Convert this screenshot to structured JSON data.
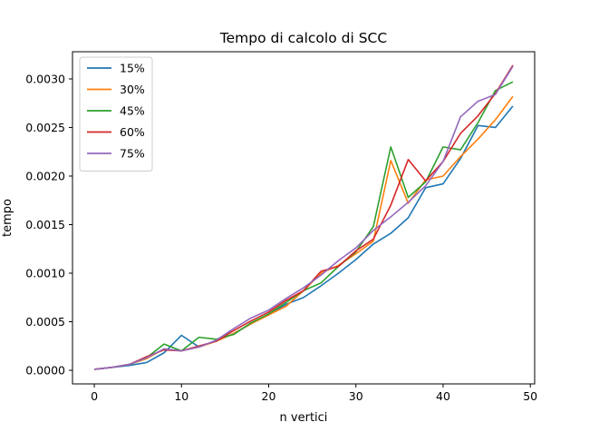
{
  "chart_data": {
    "type": "line",
    "title": "Tempo di calcolo di SCC",
    "xlabel": "n vertici",
    "ylabel": "tempo",
    "xlim": [
      -2.5,
      50.5
    ],
    "ylim": [
      -0.00014,
      0.00328
    ],
    "xticks": [
      0,
      10,
      20,
      30,
      40,
      50
    ],
    "xtick_labels": [
      "0",
      "10",
      "20",
      "30",
      "40",
      "50"
    ],
    "yticks": [
      0.0,
      0.0005,
      0.001,
      0.0015,
      0.002,
      0.0025,
      0.003
    ],
    "ytick_labels": [
      "0.0000",
      "0.0005",
      "0.0010",
      "0.0015",
      "0.0020",
      "0.0025",
      "0.0030"
    ],
    "grid": false,
    "legend_position": "top-left",
    "x": [
      0,
      2,
      4,
      6,
      8,
      10,
      12,
      14,
      16,
      18,
      20,
      22,
      24,
      26,
      28,
      30,
      32,
      34,
      36,
      38,
      40,
      42,
      44,
      46,
      48
    ],
    "series": [
      {
        "name": "15%",
        "color": "#1f77b4",
        "values": [
          1e-05,
          3e-05,
          5e-05,
          8e-05,
          0.00018,
          0.00036,
          0.00024,
          0.0003,
          0.00038,
          0.00048,
          0.00058,
          0.00068,
          0.00075,
          0.00087,
          0.001,
          0.00114,
          0.0013,
          0.00141,
          0.00157,
          0.00188,
          0.00192,
          0.00218,
          0.00252,
          0.0025,
          0.00272
        ]
      },
      {
        "name": "30%",
        "color": "#ff7f0e",
        "values": [
          1e-05,
          3e-05,
          6e-05,
          0.00012,
          0.00022,
          0.0002,
          0.00024,
          0.0003,
          0.00038,
          0.00048,
          0.00057,
          0.00066,
          0.00082,
          0.001,
          0.00108,
          0.0012,
          0.00133,
          0.00216,
          0.00172,
          0.00196,
          0.002,
          0.0022,
          0.00238,
          0.00258,
          0.00282
        ]
      },
      {
        "name": "45%",
        "color": "#2ca02c",
        "values": [
          1e-05,
          3e-05,
          6e-05,
          0.00013,
          0.00027,
          0.0002,
          0.00034,
          0.00032,
          0.00037,
          0.00049,
          0.00058,
          0.0007,
          0.00082,
          0.0009,
          0.00107,
          0.00122,
          0.00148,
          0.0023,
          0.00178,
          0.00194,
          0.0023,
          0.00227,
          0.00255,
          0.00288,
          0.00297
        ]
      },
      {
        "name": "60%",
        "color": "#d62728",
        "values": [
          1e-05,
          3e-05,
          6e-05,
          0.00014,
          0.00021,
          0.0002,
          0.00025,
          0.0003,
          0.00041,
          0.00051,
          0.0006,
          0.00072,
          0.00082,
          0.00102,
          0.00107,
          0.00123,
          0.00135,
          0.0017,
          0.00217,
          0.00195,
          0.00215,
          0.00244,
          0.00262,
          0.00285,
          0.00314
        ]
      },
      {
        "name": "75%",
        "color": "#9467bd",
        "values": [
          1e-05,
          3e-05,
          6e-05,
          0.00013,
          0.00022,
          0.0002,
          0.00024,
          0.00031,
          0.00043,
          0.00054,
          0.00062,
          0.00074,
          0.00085,
          0.00098,
          0.00113,
          0.00126,
          0.00144,
          0.00158,
          0.00173,
          0.0019,
          0.00215,
          0.00261,
          0.00277,
          0.00284,
          0.00313
        ]
      }
    ]
  }
}
